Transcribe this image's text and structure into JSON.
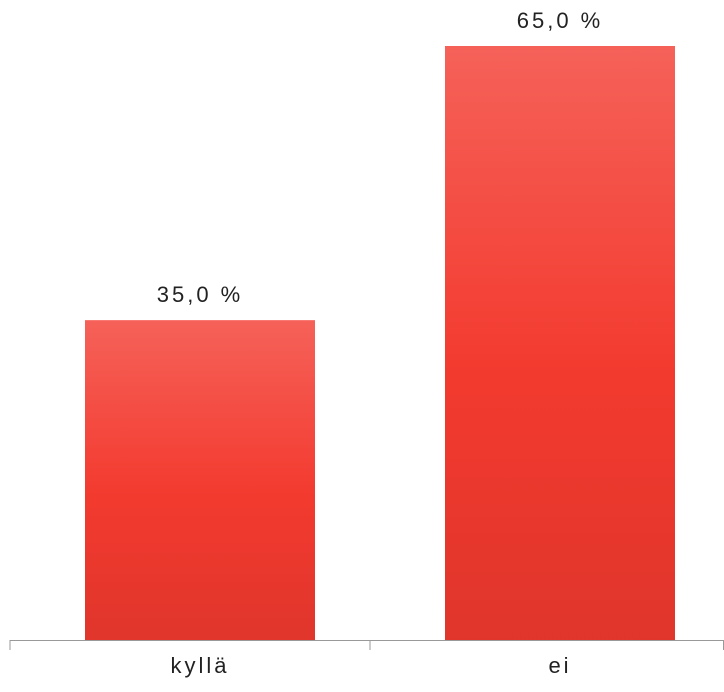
{
  "chart_data": {
    "type": "bar",
    "categories": [
      "kyllä",
      "ei"
    ],
    "values": [
      35,
      65
    ],
    "value_labels": [
      "35,0 %",
      "65,0 %"
    ],
    "color": "#f33a2f"
  }
}
